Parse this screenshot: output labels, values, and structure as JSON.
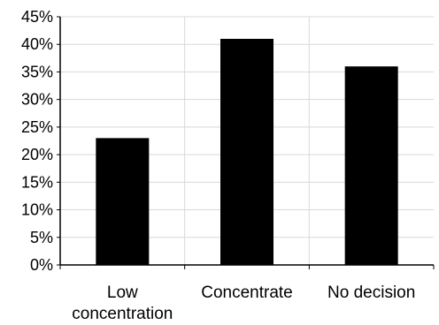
{
  "chart_data": {
    "type": "bar",
    "title": "",
    "xlabel": "",
    "ylabel": "",
    "categories": [
      "Low concentration",
      "Concentrate",
      "No decision"
    ],
    "category_label_lines": [
      [
        "Low",
        "concentration"
      ],
      [
        "Concentrate"
      ],
      [
        "No decision"
      ]
    ],
    "values": [
      23,
      41,
      36
    ],
    "ylim": [
      0,
      45
    ],
    "ytick_step": 5,
    "ytick_labels": [
      "0%",
      "5%",
      "10%",
      "15%",
      "20%",
      "25%",
      "30%",
      "35%",
      "40%",
      "45%"
    ],
    "grid": {
      "horizontal": true,
      "vertical_separators": true
    },
    "bar_color": "#000000",
    "grid_color": "#d9d9d9",
    "axis_color": "#000000",
    "legend": "none"
  }
}
